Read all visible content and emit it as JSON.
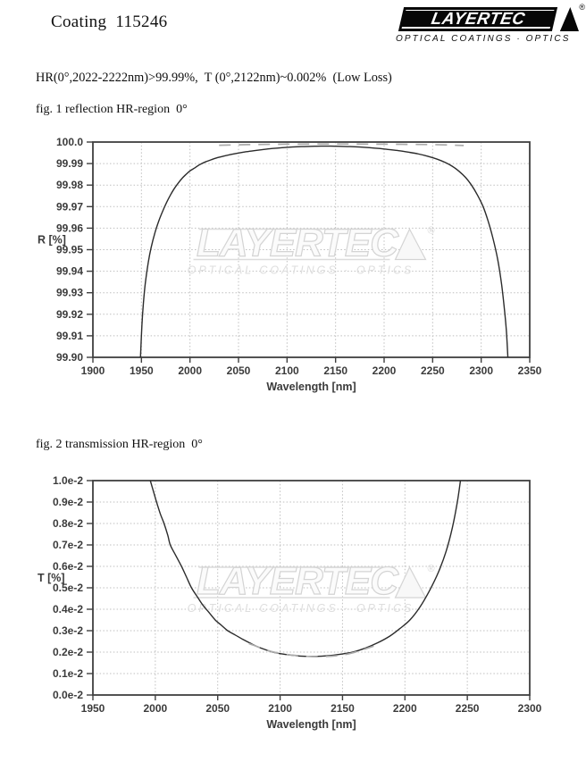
{
  "page": {
    "title": "Coating  115246",
    "spec_line": "HR(0°,2022-2222nm)>99.99%,  T (0°,2122nm)~0.002%  (Low Loss)"
  },
  "logo": {
    "name": "LAYERTEC",
    "tagline": "OPTICAL COATINGS · OPTICS",
    "registered_mark": "®"
  },
  "figures": [
    {
      "caption": "fig. 1 reflection HR-region  0°"
    },
    {
      "caption": "fig. 2 transmission HR-region  0°"
    }
  ],
  "chart_data": [
    {
      "type": "line",
      "title": "fig. 1 reflection HR-region 0°",
      "xlabel": "Wavelength [nm]",
      "ylabel": "R [%]",
      "xlim": [
        1900,
        2350
      ],
      "ylim": [
        99.9,
        100.0
      ],
      "x_ticks": [
        1900,
        1950,
        2000,
        2050,
        2100,
        2150,
        2200,
        2250,
        2300,
        2350
      ],
      "y_ticks": [
        {
          "v": 100.0,
          "label": "100.0"
        },
        {
          "v": 99.99,
          "label": "99.99"
        },
        {
          "v": 99.98,
          "label": "99.98"
        },
        {
          "v": 99.97,
          "label": "99.97"
        },
        {
          "v": 99.96,
          "label": "99.96"
        },
        {
          "v": 99.95,
          "label": "99.95"
        },
        {
          "v": 99.94,
          "label": "99.94"
        },
        {
          "v": 99.93,
          "label": "99.93"
        },
        {
          "v": 99.92,
          "label": "99.92"
        },
        {
          "v": 99.91,
          "label": "99.91"
        },
        {
          "v": 99.9,
          "label": "99.90"
        }
      ],
      "grid": "dotted",
      "legend": "none",
      "series": [
        {
          "name": "reflectance curve (solid)",
          "style": "solid",
          "color": "#2b2b2b",
          "points": [
            [
              1949,
              99.9
            ],
            [
              1950.5,
              99.915
            ],
            [
              1952,
              99.925
            ],
            [
              1954,
              99.9345
            ],
            [
              1957,
              99.944
            ],
            [
              1960,
              99.951
            ],
            [
              1964,
              99.958
            ],
            [
              1968,
              99.9635
            ],
            [
              1972,
              99.968
            ],
            [
              1976,
              99.972
            ],
            [
              1980,
              99.9755
            ],
            [
              1984,
              99.9785
            ],
            [
              1988,
              99.981
            ],
            [
              1992,
              99.9832
            ],
            [
              1996,
              99.985
            ],
            [
              2000,
              99.9866
            ],
            [
              2005,
              99.988
            ],
            [
              2010,
              99.9895
            ],
            [
              2016,
              99.9908
            ],
            [
              2022,
              99.9918
            ],
            [
              2028,
              99.9927
            ],
            [
              2035,
              99.9935
            ],
            [
              2042,
              99.9942
            ],
            [
              2050,
              99.9949
            ],
            [
              2058,
              99.9955
            ],
            [
              2066,
              99.996
            ],
            [
              2075,
              99.9965
            ],
            [
              2085,
              99.997
            ],
            [
              2095,
              99.9974
            ],
            [
              2105,
              99.9977
            ],
            [
              2115,
              99.9979
            ],
            [
              2125,
              99.998
            ],
            [
              2135,
              99.9981
            ],
            [
              2145,
              99.9981
            ],
            [
              2155,
              99.998
            ],
            [
              2165,
              99.9979
            ],
            [
              2175,
              99.9977
            ],
            [
              2185,
              99.9974
            ],
            [
              2195,
              99.997
            ],
            [
              2205,
              99.9965
            ],
            [
              2215,
              99.996
            ],
            [
              2225,
              99.9953
            ],
            [
              2235,
              99.9945
            ],
            [
              2245,
              99.9934
            ],
            [
              2255,
              99.992
            ],
            [
              2263,
              99.9905
            ],
            [
              2270,
              99.9888
            ],
            [
              2277,
              99.9865
            ],
            [
              2284,
              99.9835
            ],
            [
              2290,
              99.98
            ],
            [
              2296,
              99.9755
            ],
            [
              2302,
              99.97
            ],
            [
              2307,
              99.9635
            ],
            [
              2312,
              99.9555
            ],
            [
              2317,
              99.9455
            ],
            [
              2321,
              99.934
            ],
            [
              2324,
              99.922
            ],
            [
              2326,
              99.912
            ],
            [
              2327.5,
              99.9
            ]
          ]
        },
        {
          "name": "reflectance reference (gray dashed)",
          "style": "dashed",
          "color": "#ababab",
          "points": [
            [
              2030,
              99.9985
            ],
            [
              2060,
              99.9988
            ],
            [
              2100,
              99.999
            ],
            [
              2150,
              99.9991
            ],
            [
              2200,
              99.999
            ],
            [
              2250,
              99.9988
            ],
            [
              2282,
              99.9984
            ]
          ]
        }
      ]
    },
    {
      "type": "line",
      "title": "fig. 2 transmission HR-region 0°",
      "xlabel": "Wavelength [nm]",
      "ylabel": "T [%]",
      "xlim": [
        1950,
        2300
      ],
      "ylim": [
        0.0,
        1.0
      ],
      "y_value_unit": "1e-2 %",
      "x_ticks": [
        1950,
        2000,
        2050,
        2100,
        2150,
        2200,
        2250,
        2300
      ],
      "y_ticks": [
        {
          "v": 1.0,
          "label": "1.0e-2"
        },
        {
          "v": 0.9,
          "label": "0.9e-2"
        },
        {
          "v": 0.8,
          "label": "0.8e-2"
        },
        {
          "v": 0.7,
          "label": "0.7e-2"
        },
        {
          "v": 0.6,
          "label": "0.6e-2"
        },
        {
          "v": 0.5,
          "label": "0.5e-2"
        },
        {
          "v": 0.4,
          "label": "0.4e-2"
        },
        {
          "v": 0.3,
          "label": "0.3e-2"
        },
        {
          "v": 0.2,
          "label": "0.2e-2"
        },
        {
          "v": 0.1,
          "label": "0.1e-2"
        },
        {
          "v": 0.0,
          "label": "0.0e-2"
        }
      ],
      "grid": "dotted",
      "legend": "none",
      "series": [
        {
          "name": "transmission curve (solid)",
          "style": "solid",
          "color": "#2b2b2b",
          "points": [
            [
              1996,
              1.0
            ],
            [
              1999,
              0.94
            ],
            [
              2001,
              0.9
            ],
            [
              2004,
              0.845
            ],
            [
              2007,
              0.8
            ],
            [
              2010,
              0.745
            ],
            [
              2012,
              0.7
            ],
            [
              2016,
              0.655
            ],
            [
              2021,
              0.6
            ],
            [
              2025,
              0.55
            ],
            [
              2029,
              0.5
            ],
            [
              2034,
              0.455
            ],
            [
              2038,
              0.42
            ],
            [
              2043,
              0.385
            ],
            [
              2048,
              0.35
            ],
            [
              2053,
              0.325
            ],
            [
              2058,
              0.3
            ],
            [
              2064,
              0.28
            ],
            [
              2070,
              0.26
            ],
            [
              2076,
              0.242
            ],
            [
              2082,
              0.225
            ],
            [
              2088,
              0.212
            ],
            [
              2094,
              0.2
            ],
            [
              2100,
              0.193
            ],
            [
              2106,
              0.188
            ],
            [
              2112,
              0.184
            ],
            [
              2118,
              0.181
            ],
            [
              2128,
              0.18
            ],
            [
              2138,
              0.183
            ],
            [
              2148,
              0.19
            ],
            [
              2158,
              0.2
            ],
            [
              2168,
              0.218
            ],
            [
              2178,
              0.243
            ],
            [
              2188,
              0.275
            ],
            [
              2196,
              0.31
            ],
            [
              2204,
              0.35
            ],
            [
              2212,
              0.41
            ],
            [
              2220,
              0.49
            ],
            [
              2227,
              0.575
            ],
            [
              2233,
              0.67
            ],
            [
              2238,
              0.78
            ],
            [
              2242,
              0.9
            ],
            [
              2244.5,
              1.0
            ]
          ]
        },
        {
          "name": "transmission reference (gray dashed)",
          "style": "dashed",
          "color": "#ababab",
          "points": [
            [
              2075,
              0.24
            ],
            [
              2095,
              0.2
            ],
            [
              2115,
              0.183
            ],
            [
              2135,
              0.179
            ],
            [
              2155,
              0.192
            ],
            [
              2175,
              0.228
            ]
          ]
        }
      ]
    }
  ]
}
